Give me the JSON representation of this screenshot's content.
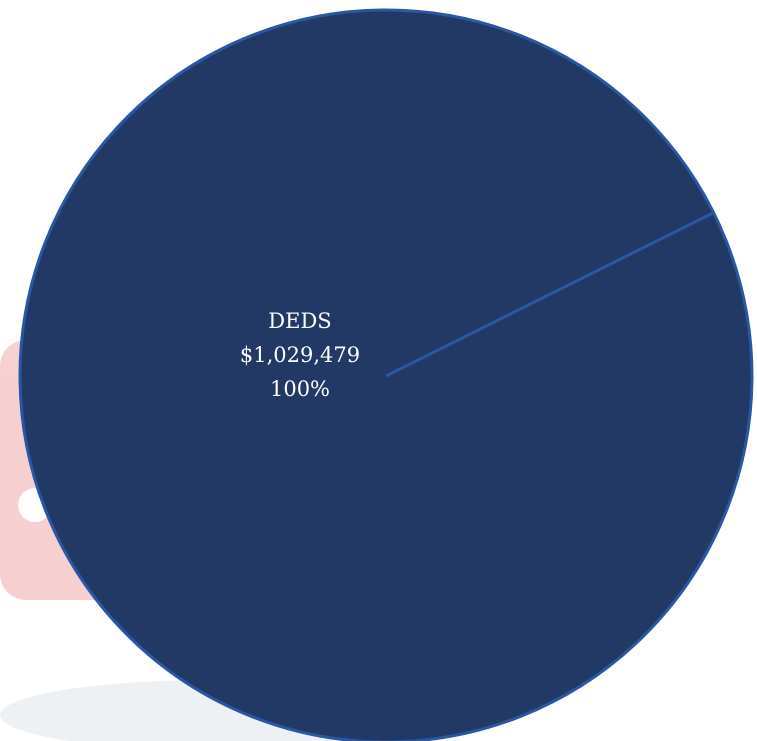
{
  "chart_data": {
    "type": "pie",
    "title": "",
    "slices": [
      {
        "name": "DEDS",
        "value": 1029479,
        "value_label": "$1,029,479",
        "percent_label": "100%",
        "color": "#213964"
      }
    ],
    "slice_border_color": "#2a57a4",
    "legend": "none"
  }
}
